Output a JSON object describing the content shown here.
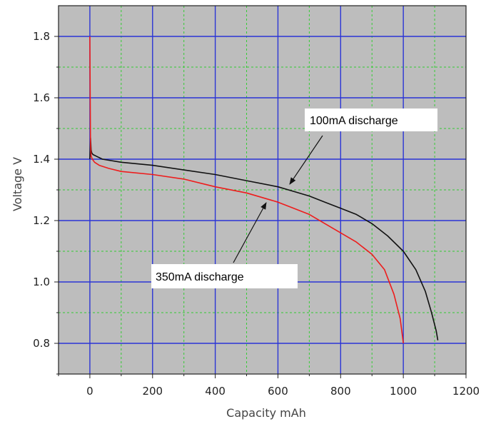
{
  "chart_data": {
    "type": "line",
    "title": "",
    "xlabel": "Capacity mAh",
    "ylabel": "Voltage V",
    "xlim": [
      -100,
      1200
    ],
    "ylim": [
      0.7,
      1.9
    ],
    "x_ticks": [
      0,
      200,
      400,
      600,
      800,
      1000,
      1200
    ],
    "x_tick_labels": [
      "0",
      "200",
      "400",
      "600",
      "800",
      "1000",
      "1200"
    ],
    "y_ticks": [
      0.8,
      1.0,
      1.2,
      1.4,
      1.6,
      1.8
    ],
    "y_tick_labels": [
      "0.8",
      "1.0",
      "1.2",
      "1.4",
      "1.6",
      "1.8"
    ],
    "grid": true,
    "colors": {
      "plot_background": "#bdbdbd",
      "major_grid": "#2b35d6",
      "minor_grid": "#33cc33",
      "series_100mA": "#111111",
      "series_350mA": "#ee1c1c"
    },
    "series": [
      {
        "key": "100mA",
        "color": "#111111",
        "x": [
          0,
          2,
          4,
          6,
          10,
          20,
          40,
          100,
          200,
          300,
          400,
          500,
          600,
          650,
          700,
          750,
          800,
          850,
          900,
          950,
          1000,
          1040,
          1070,
          1090,
          1105,
          1110
        ],
        "y": [
          1.4,
          1.47,
          1.43,
          1.42,
          1.415,
          1.41,
          1.4,
          1.39,
          1.38,
          1.365,
          1.35,
          1.33,
          1.31,
          1.295,
          1.28,
          1.26,
          1.24,
          1.22,
          1.19,
          1.15,
          1.1,
          1.04,
          0.97,
          0.9,
          0.84,
          0.81
        ]
      },
      {
        "key": "350mA",
        "color": "#ee1c1c",
        "x": [
          0,
          1,
          2,
          4,
          8,
          15,
          30,
          60,
          100,
          200,
          300,
          400,
          500,
          600,
          650,
          700,
          750,
          800,
          850,
          900,
          940,
          970,
          990,
          1000
        ],
        "y": [
          1.8,
          1.6,
          1.45,
          1.41,
          1.4,
          1.39,
          1.38,
          1.37,
          1.36,
          1.35,
          1.335,
          1.31,
          1.29,
          1.26,
          1.24,
          1.22,
          1.19,
          1.16,
          1.13,
          1.09,
          1.04,
          0.96,
          0.88,
          0.8
        ]
      }
    ],
    "annotations": [
      {
        "text": "100mA discharge",
        "series": "100mA",
        "arrow_to": [
          640,
          1.31
        ]
      },
      {
        "text": "350mA discharge",
        "series": "350mA",
        "arrow_to": [
          570,
          1.26
        ]
      }
    ]
  }
}
